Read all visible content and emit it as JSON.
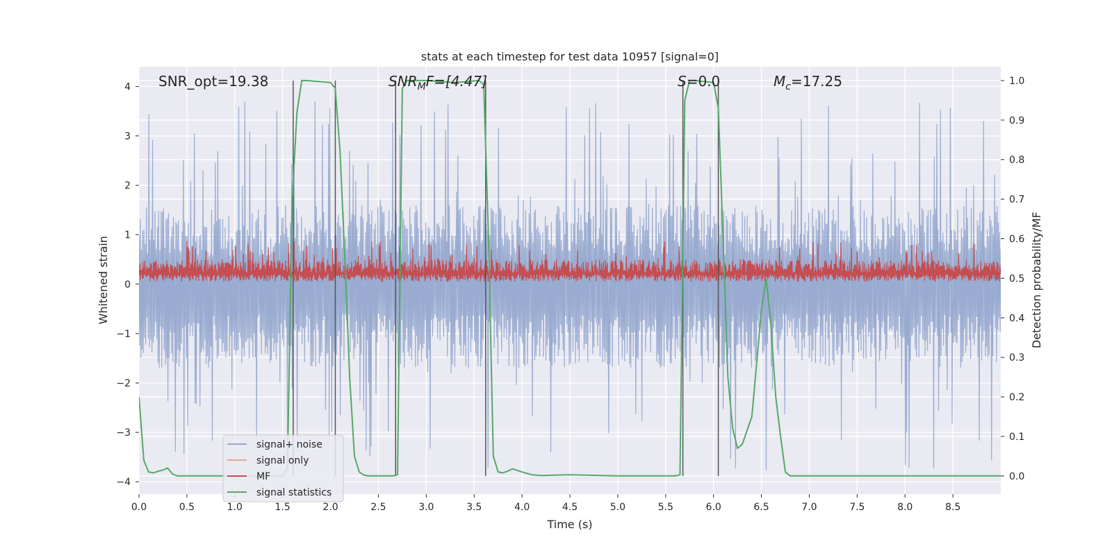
{
  "chart_data": {
    "type": "line",
    "title": "stats at each timestep for test data 10957 [signal=0]",
    "xlabel": "Time (s)",
    "ylabel": "Whitened strain",
    "y2label": "Detection probability/MF",
    "xlim": [
      0.0,
      9.0
    ],
    "ylim": [
      -4.25,
      4.4
    ],
    "y2lim": [
      -0.046,
      1.035
    ],
    "x_ticks": [
      "0.0",
      "0.5",
      "1.0",
      "1.5",
      "2.0",
      "2.5",
      "3.0",
      "3.5",
      "4.0",
      "4.5",
      "5.0",
      "5.5",
      "6.0",
      "6.5",
      "7.0",
      "7.5",
      "8.0",
      "8.5"
    ],
    "y_ticks": [
      "4",
      "3",
      "2",
      "1",
      "0",
      "−1",
      "−2",
      "−3",
      "−4"
    ],
    "y2_ticks": [
      "1.0",
      "0.9",
      "0.8",
      "0.7",
      "0.6",
      "0.5",
      "0.4",
      "0.3",
      "0.2",
      "0.1",
      "0.0"
    ],
    "annotations": {
      "snr_opt": "SNR_opt=19.38",
      "snr_mf_base": "SNR",
      "snr_mf_sub": "M",
      "snr_mf_rest": "F=[4.47]",
      "s_label": "S",
      "s_value": "=0.0",
      "mc_base": "M",
      "mc_sub": "c",
      "mc_value": "=17.25"
    },
    "legend": {
      "position": "lower-left",
      "entries": [
        {
          "label": "signal+ noise",
          "color": "#95a8cd"
        },
        {
          "label": "signal only",
          "color": "#e8a88a"
        },
        {
          "label": "MF",
          "color": "#c44e52"
        },
        {
          "label": "signal statistics",
          "color": "#55a868"
        }
      ]
    },
    "vertical_lines": [
      1.61,
      2.05,
      2.68,
      3.62,
      5.68,
      6.05
    ],
    "series": [
      {
        "name": "signal+ noise",
        "color": "#95a8cd",
        "axis": "left",
        "style": "dense noise",
        "upper_envelope_typical": 1.6,
        "lower_envelope_typical": -1.7,
        "peak_max": 3.7,
        "trough_min": -3.8
      },
      {
        "name": "signal only",
        "color": "#e8a88a",
        "axis": "left",
        "x": [],
        "y": []
      },
      {
        "name": "MF",
        "color": "#c44e52",
        "axis": "left",
        "style": "dense noise",
        "baseline": 0.05,
        "typical_top": 0.5,
        "peak_max": 0.9
      },
      {
        "name": "signal statistics",
        "color": "#55a868",
        "axis": "right",
        "x": [
          0.0,
          0.05,
          0.1,
          0.15,
          0.2,
          0.25,
          0.3,
          0.35,
          0.4,
          0.5,
          1.0,
          1.5,
          1.55,
          1.6,
          1.65,
          1.7,
          1.75,
          2.0,
          2.05,
          2.1,
          2.15,
          2.2,
          2.25,
          2.3,
          2.35,
          2.4,
          2.65,
          2.7,
          2.75,
          2.8,
          3.0,
          3.3,
          3.55,
          3.6,
          3.65,
          3.7,
          3.75,
          3.8,
          3.85,
          3.9,
          4.0,
          4.1,
          4.2,
          4.5,
          5.0,
          5.5,
          5.6,
          5.65,
          5.7,
          5.75,
          5.8,
          6.0,
          6.05,
          6.1,
          6.15,
          6.2,
          6.25,
          6.3,
          6.4,
          6.5,
          6.55,
          6.6,
          6.65,
          6.7,
          6.75,
          6.8,
          6.9,
          7.5,
          8.0,
          8.5,
          9.0
        ],
        "y": [
          0.2,
          0.04,
          0.01,
          0.008,
          0.012,
          0.015,
          0.02,
          0.005,
          0.0,
          0.0,
          0.0,
          0.0,
          0.02,
          0.7,
          0.92,
          1.0,
          1.0,
          0.995,
          0.98,
          0.82,
          0.55,
          0.25,
          0.05,
          0.01,
          0.002,
          0.0,
          0.0,
          0.003,
          0.98,
          1.0,
          1.0,
          0.995,
          1.0,
          0.99,
          0.6,
          0.05,
          0.01,
          0.008,
          0.012,
          0.018,
          0.01,
          0.003,
          0.001,
          0.003,
          0.0,
          0.0,
          0.0,
          0.003,
          0.95,
          1.0,
          1.0,
          0.995,
          0.93,
          0.6,
          0.25,
          0.12,
          0.07,
          0.08,
          0.15,
          0.42,
          0.5,
          0.38,
          0.2,
          0.1,
          0.01,
          0.0,
          0.0,
          0.0,
          0.0,
          0.0,
          0.0
        ]
      }
    ]
  }
}
